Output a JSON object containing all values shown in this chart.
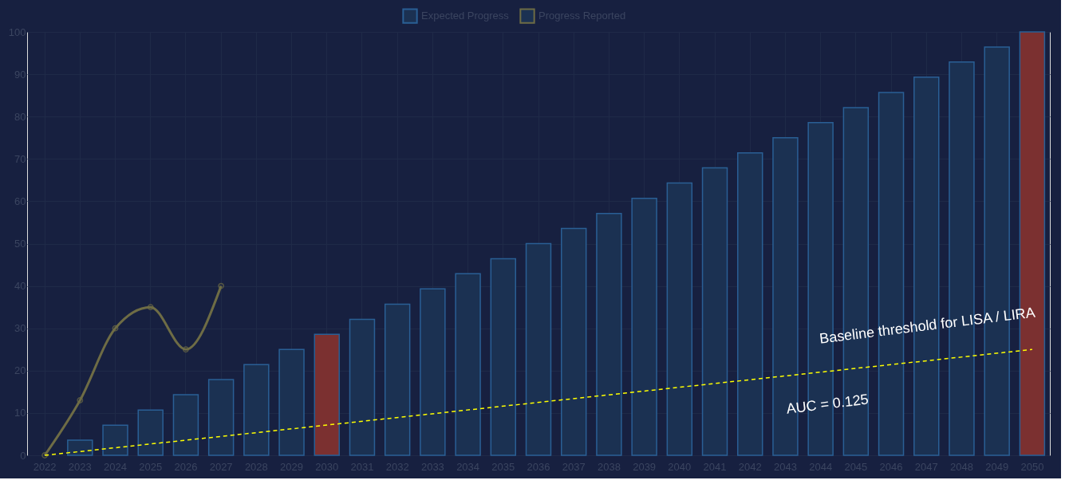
{
  "chart_data": {
    "type": "bar",
    "categories": [
      "2022",
      "2023",
      "2024",
      "2025",
      "2026",
      "2027",
      "2028",
      "2029",
      "2030",
      "2031",
      "2032",
      "2033",
      "2034",
      "2035",
      "2036",
      "2037",
      "2038",
      "2039",
      "2040",
      "2041",
      "2042",
      "2043",
      "2044",
      "2045",
      "2046",
      "2047",
      "2048",
      "2049",
      "2050"
    ],
    "series": [
      {
        "name": "Expected Progress",
        "color": "#2a5f95",
        "colors": [
          "#1b3152",
          "#1b3152",
          "#1b3152",
          "#1b3152",
          "#1b3152",
          "#1b3152",
          "#1b3152",
          "#1b3152",
          "#7b3030",
          "#1b3152",
          "#1b3152",
          "#1b3152",
          "#1b3152",
          "#1b3152",
          "#1b3152",
          "#1b3152",
          "#1b3152",
          "#1b3152",
          "#1b3152",
          "#1b3152",
          "#1b3152",
          "#1b3152",
          "#1b3152",
          "#1b3152",
          "#1b3152",
          "#1b3152",
          "#1b3152",
          "#1b3152",
          "#7b3030"
        ],
        "values": [
          0,
          3.6,
          7.1,
          10.7,
          14.3,
          17.9,
          21.4,
          25.0,
          28.6,
          32.1,
          35.7,
          39.3,
          42.9,
          46.4,
          50.0,
          53.6,
          57.1,
          60.7,
          64.3,
          67.9,
          71.4,
          75.0,
          78.6,
          82.1,
          85.7,
          89.3,
          92.9,
          96.4,
          100
        ]
      },
      {
        "name": "Progress Reported",
        "type": "line",
        "color": "#6e6c45",
        "marker": "circle",
        "values": [
          0,
          13,
          30,
          35,
          25,
          40,
          null,
          null,
          null,
          null,
          null,
          null,
          null,
          null,
          null,
          null,
          null,
          null,
          null,
          null,
          null,
          null,
          null,
          null,
          null,
          null,
          null,
          null,
          null
        ]
      },
      {
        "type": "line",
        "values": [
          0,
          null,
          null,
          null,
          null,
          null,
          null,
          null,
          null,
          null,
          null,
          null,
          null,
          null,
          null,
          null,
          null,
          null,
          null,
          null,
          null,
          null,
          null,
          null,
          null,
          null,
          null,
          null,
          25
        ],
        "color": "#ffff00",
        "line_style": "dashed"
      }
    ],
    "ylim": [
      0,
      100
    ],
    "yticks": [
      0,
      10,
      20,
      30,
      40,
      50,
      60,
      70,
      80,
      90,
      100
    ],
    "grid": true,
    "legend": "top",
    "annotations": [
      "Baseline threshold for LISA / LIRA",
      "AUC = 0.125"
    ]
  }
}
